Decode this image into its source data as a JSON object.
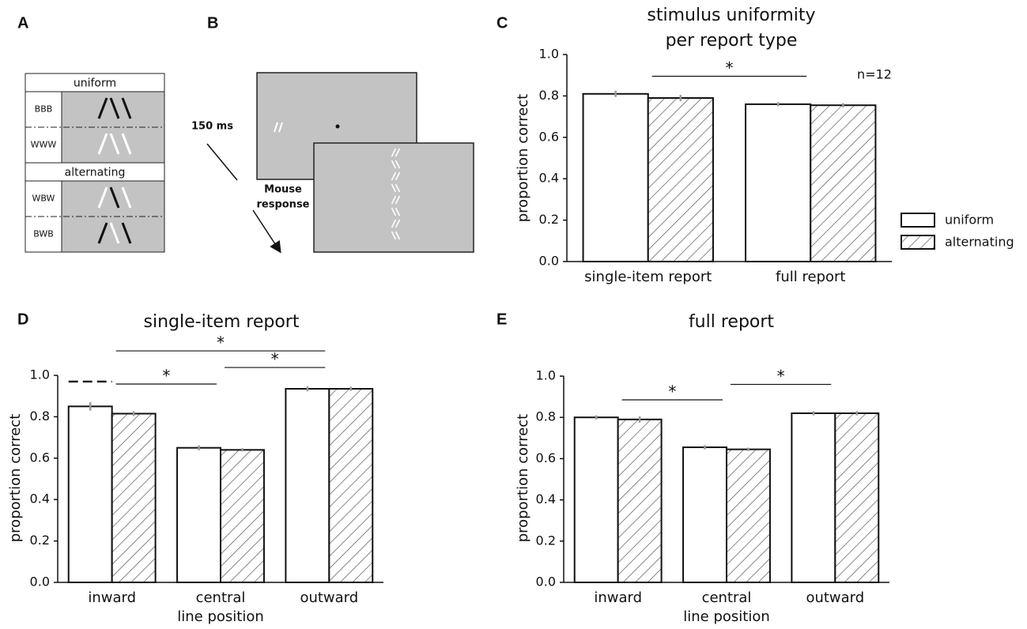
{
  "diagram_a": {
    "label": "A",
    "sections": [
      {
        "title": "uniform",
        "rows": [
          "BBB",
          "WWW"
        ]
      },
      {
        "title": "alternating",
        "rows": [
          "WBW",
          "BWB"
        ]
      }
    ]
  },
  "diagram_b": {
    "label": "B",
    "timing": "150 ms",
    "response": [
      "Mouse",
      "response"
    ]
  },
  "chart_data": [
    {
      "type": "bar",
      "label": "C",
      "title": [
        "stimulus uniformity",
        "per report type"
      ],
      "ylabel": "proportion correct",
      "annotation": "n=12",
      "categories": [
        "single-item report",
        "full report"
      ],
      "series": [
        {
          "name": "uniform",
          "color": "#ffffff",
          "hatch": false,
          "values": [
            0.81,
            0.76
          ],
          "errors": [
            0.015,
            0.01
          ]
        },
        {
          "name": "alternating",
          "color": "#ffffff",
          "hatch": true,
          "values": [
            0.79,
            0.755
          ],
          "errors": [
            0.015,
            0.01
          ]
        }
      ],
      "ylim": [
        0,
        1
      ],
      "yticks": [
        {
          "value": 0,
          "label": "0.0"
        },
        0.2,
        0.4,
        0.6,
        0.8,
        {
          "value": 1,
          "label": "1.0"
        }
      ],
      "legend": true,
      "legend_position": "right",
      "significance": [
        {
          "label": "*",
          "from": 0,
          "to": 1
        }
      ]
    },
    {
      "type": "bar",
      "label": "D",
      "title": "single-item report",
      "ylabel": "proportion correct",
      "xlabel": "line position",
      "categories": [
        "inward",
        "central",
        "outward"
      ],
      "series": [
        {
          "name": "uniform",
          "color": "#ffffff",
          "hatch": false,
          "values": [
            0.85,
            0.65,
            0.935
          ],
          "errors": [
            0.02,
            0.012,
            0.012
          ]
        },
        {
          "name": "alternating",
          "color": "#ffffff",
          "hatch": true,
          "values": [
            0.815,
            0.64,
            0.935
          ],
          "errors": [
            0.012,
            0.008,
            0.01
          ]
        }
      ],
      "reference": 0.97,
      "ylim": [
        0,
        1
      ],
      "yticks": [
        {
          "value": 0,
          "label": "0.0"
        },
        0.2,
        0.4,
        0.6,
        0.8,
        {
          "value": 1,
          "label": "1.0"
        }
      ],
      "legend": false,
      "significance": [
        {
          "label": "*",
          "from": 0,
          "to": 1
        },
        {
          "label": "*",
          "from": 1,
          "to": 2
        },
        {
          "label": "*",
          "from": 0,
          "to": 2
        }
      ]
    },
    {
      "type": "bar",
      "label": "E",
      "title": "full report",
      "ylabel": "proportion correct",
      "xlabel": "line position",
      "categories": [
        "inward",
        "central",
        "outward"
      ],
      "series": [
        {
          "name": "uniform",
          "color": "#ffffff",
          "hatch": false,
          "values": [
            0.8,
            0.655,
            0.82
          ],
          "errors": [
            0.01,
            0.01,
            0.01
          ]
        },
        {
          "name": "alternating",
          "color": "#ffffff",
          "hatch": true,
          "values": [
            0.79,
            0.645,
            0.82
          ],
          "errors": [
            0.015,
            0.008,
            0.01
          ]
        }
      ],
      "ylim": [
        0,
        1
      ],
      "yticks": [
        {
          "value": 0,
          "label": "0.0"
        },
        0.2,
        0.4,
        0.6,
        0.8,
        {
          "value": 1,
          "label": "1.0"
        }
      ],
      "legend": false,
      "significance": [
        {
          "label": "*",
          "from": 0,
          "to": 1
        },
        {
          "label": "*",
          "from": 1,
          "to": 2
        }
      ]
    }
  ]
}
